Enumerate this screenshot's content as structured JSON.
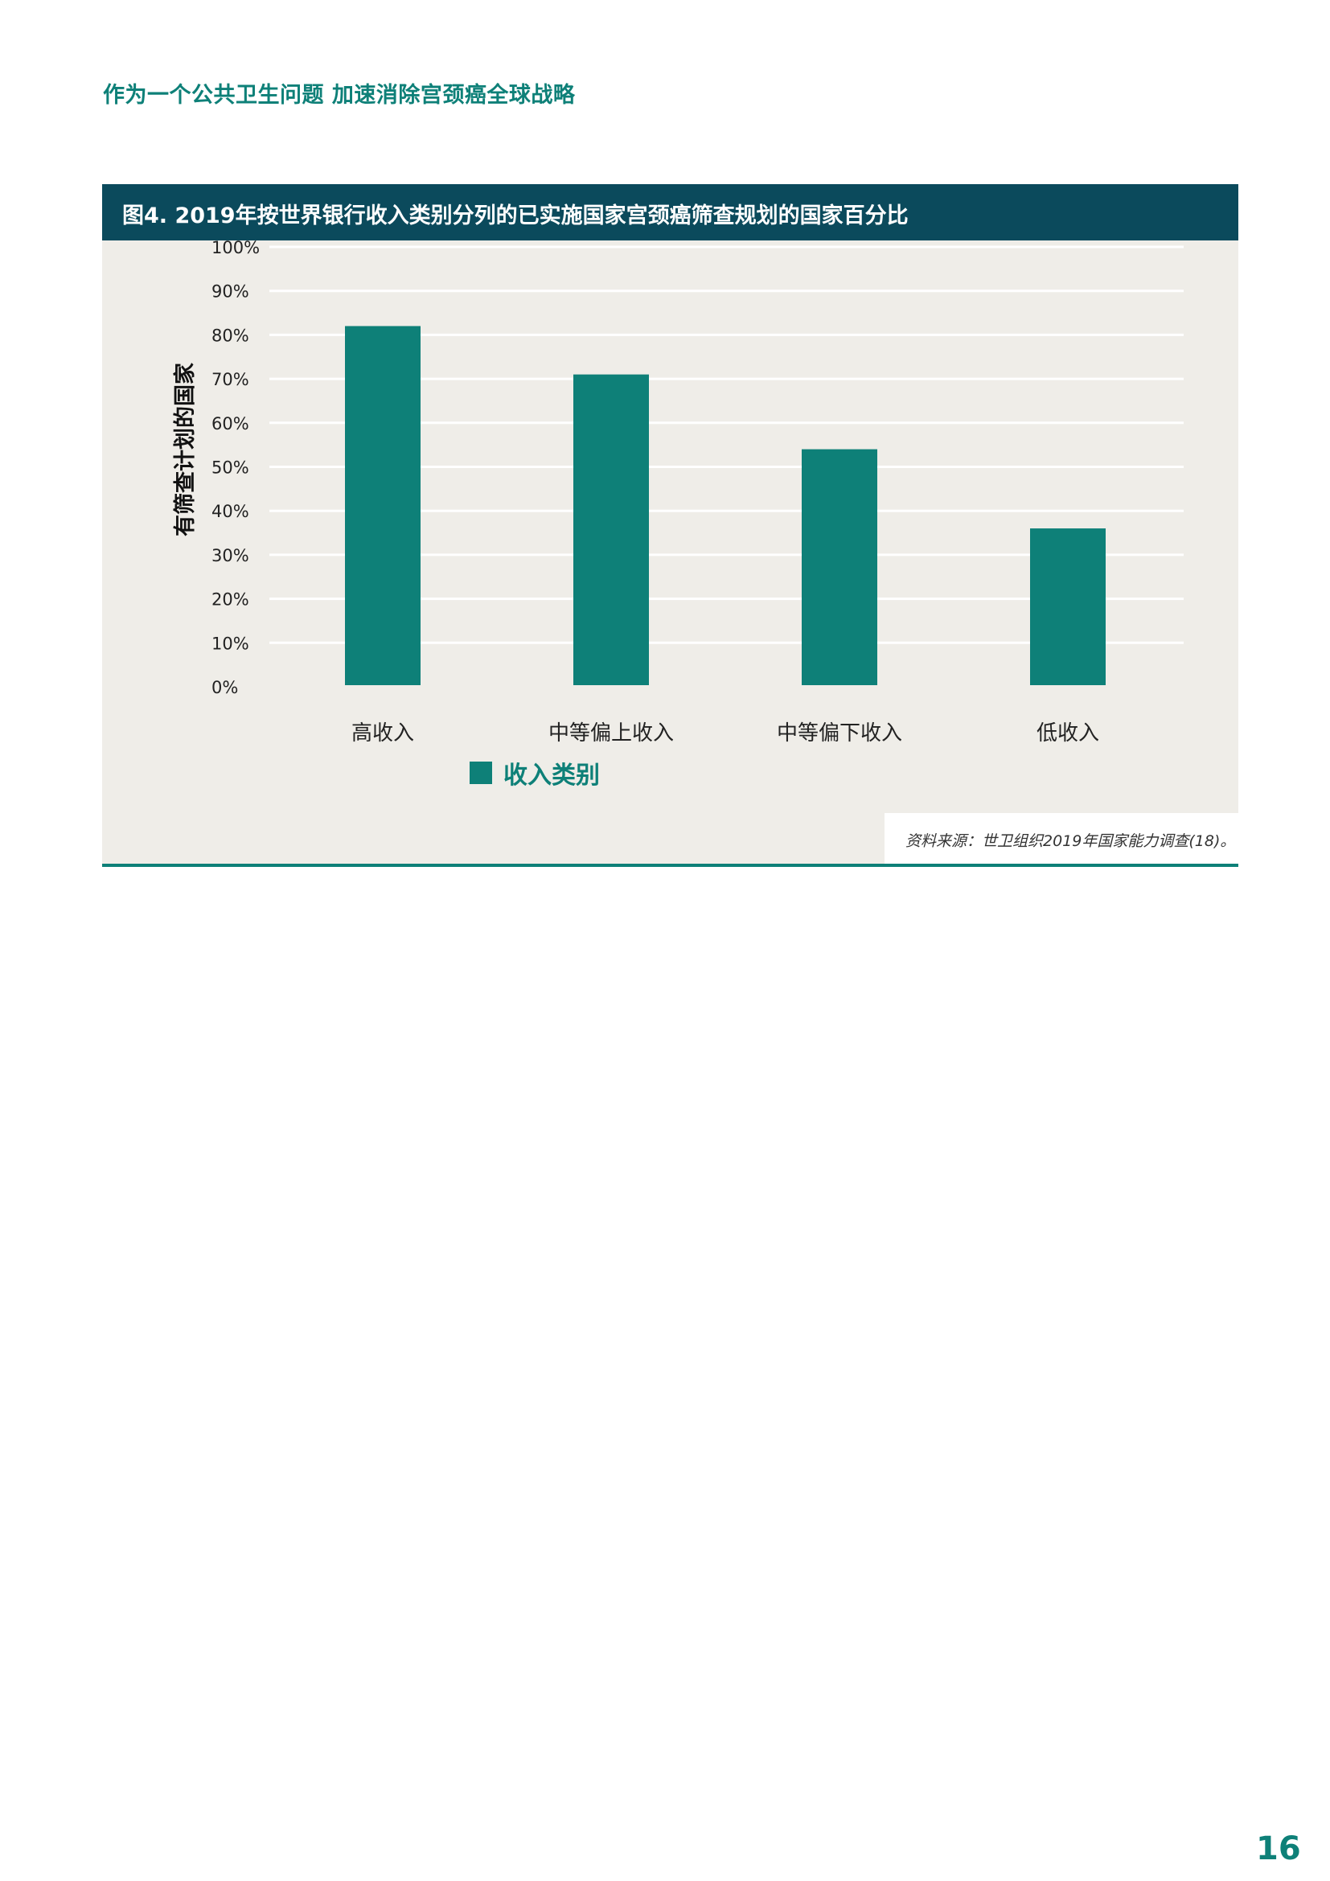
{
  "header": {
    "text": "作为一个公共卫生问题 加速消除宫颈癌全球战略"
  },
  "figure": {
    "title": "图4. 2019年按世界银行收入类别分列的已实施国家宫颈癌筛查规划的国家百分比",
    "source": "资料来源：世卫组织2019年国家能力调查(18)。"
  },
  "chart_data": {
    "type": "bar",
    "title": "图4. 2019年按世界银行收入类别分列的已实施国家宫颈癌筛查规划的国家百分比",
    "categories": [
      "高收入",
      "中等偏上收入",
      "中等偏下收入",
      "低收入"
    ],
    "series": [
      {
        "name": "收入类别",
        "values": [
          82,
          71,
          54,
          36
        ]
      }
    ],
    "ylabel": "有筛查计划的国家",
    "ylim": [
      0,
      100
    ],
    "yticks": [
      "0%",
      "10%",
      "20%",
      "30%",
      "40%",
      "50%",
      "60%",
      "70%",
      "80%",
      "90%",
      "100%"
    ],
    "grid": true,
    "legend_position": "bottom-center",
    "colors": {
      "bar": "#0e8078",
      "title_bar": "#0b4a5c",
      "background": "#efede8"
    }
  },
  "page": {
    "number": "16"
  }
}
